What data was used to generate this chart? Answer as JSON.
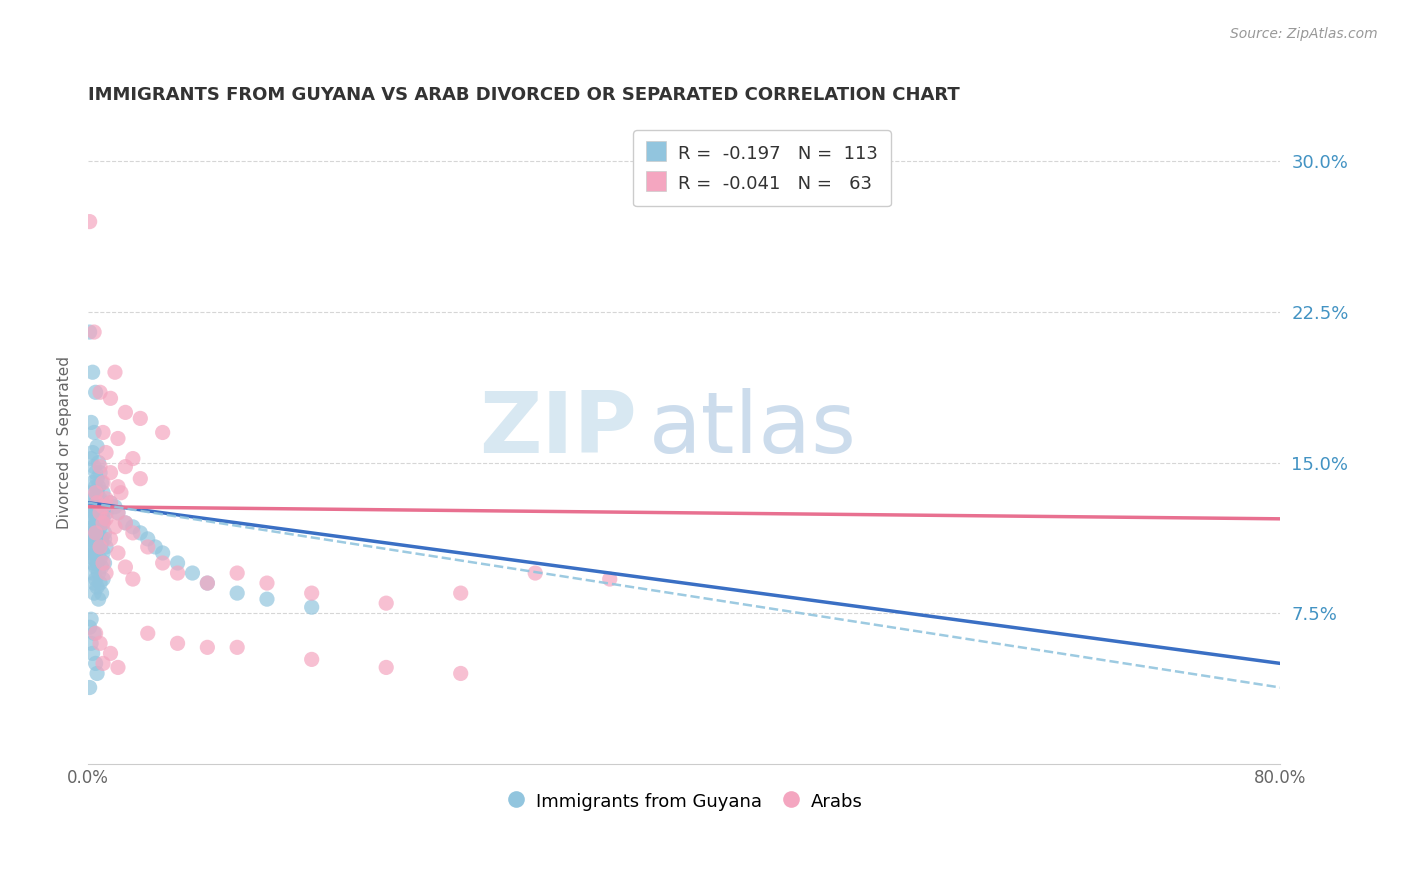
{
  "title": "IMMIGRANTS FROM GUYANA VS ARAB DIVORCED OR SEPARATED CORRELATION CHART",
  "source": "Source: ZipAtlas.com",
  "ylabel": "Divorced or Separated",
  "ytick_labels": [
    "7.5%",
    "15.0%",
    "22.5%",
    "30.0%"
  ],
  "ytick_values": [
    0.075,
    0.15,
    0.225,
    0.3
  ],
  "xlim": [
    0.0,
    0.8
  ],
  "ylim": [
    0.0,
    0.32
  ],
  "blue_color": "#92C5DE",
  "pink_color": "#F4A6C0",
  "blue_line_color": "#3A6FC4",
  "pink_line_color": "#E87090",
  "dashed_line_color": "#92C5DE",
  "blue_line": {
    "x0": 0.0,
    "y0": 0.13,
    "x1": 0.8,
    "y1": 0.05
  },
  "pink_line": {
    "x0": 0.0,
    "y0": 0.128,
    "x1": 0.8,
    "y1": 0.122
  },
  "dashed_line": {
    "x0": 0.0,
    "y0": 0.13,
    "x1": 0.8,
    "y1": 0.038
  },
  "blue_scatter": [
    [
      0.001,
      0.215
    ],
    [
      0.003,
      0.195
    ],
    [
      0.005,
      0.185
    ],
    [
      0.002,
      0.17
    ],
    [
      0.004,
      0.165
    ],
    [
      0.002,
      0.152
    ],
    [
      0.003,
      0.155
    ],
    [
      0.006,
      0.158
    ],
    [
      0.004,
      0.148
    ],
    [
      0.005,
      0.145
    ],
    [
      0.007,
      0.15
    ],
    [
      0.003,
      0.14
    ],
    [
      0.005,
      0.138
    ],
    [
      0.006,
      0.142
    ],
    [
      0.008,
      0.145
    ],
    [
      0.002,
      0.135
    ],
    [
      0.004,
      0.132
    ],
    [
      0.006,
      0.135
    ],
    [
      0.007,
      0.138
    ],
    [
      0.009,
      0.14
    ],
    [
      0.003,
      0.128
    ],
    [
      0.004,
      0.125
    ],
    [
      0.005,
      0.13
    ],
    [
      0.007,
      0.128
    ],
    [
      0.008,
      0.132
    ],
    [
      0.01,
      0.135
    ],
    [
      0.002,
      0.125
    ],
    [
      0.003,
      0.122
    ],
    [
      0.005,
      0.12
    ],
    [
      0.006,
      0.125
    ],
    [
      0.008,
      0.128
    ],
    [
      0.01,
      0.13
    ],
    [
      0.003,
      0.118
    ],
    [
      0.004,
      0.115
    ],
    [
      0.005,
      0.118
    ],
    [
      0.007,
      0.12
    ],
    [
      0.008,
      0.122
    ],
    [
      0.01,
      0.125
    ],
    [
      0.012,
      0.128
    ],
    [
      0.002,
      0.115
    ],
    [
      0.004,
      0.112
    ],
    [
      0.005,
      0.115
    ],
    [
      0.006,
      0.118
    ],
    [
      0.008,
      0.12
    ],
    [
      0.01,
      0.122
    ],
    [
      0.012,
      0.125
    ],
    [
      0.002,
      0.112
    ],
    [
      0.003,
      0.11
    ],
    [
      0.005,
      0.112
    ],
    [
      0.006,
      0.115
    ],
    [
      0.008,
      0.118
    ],
    [
      0.01,
      0.12
    ],
    [
      0.003,
      0.108
    ],
    [
      0.004,
      0.105
    ],
    [
      0.006,
      0.108
    ],
    [
      0.007,
      0.11
    ],
    [
      0.009,
      0.112
    ],
    [
      0.011,
      0.115
    ],
    [
      0.002,
      0.105
    ],
    [
      0.004,
      0.102
    ],
    [
      0.005,
      0.105
    ],
    [
      0.007,
      0.108
    ],
    [
      0.009,
      0.11
    ],
    [
      0.011,
      0.112
    ],
    [
      0.003,
      0.1
    ],
    [
      0.005,
      0.098
    ],
    [
      0.006,
      0.1
    ],
    [
      0.008,
      0.102
    ],
    [
      0.01,
      0.105
    ],
    [
      0.012,
      0.108
    ],
    [
      0.003,
      0.095
    ],
    [
      0.005,
      0.092
    ],
    [
      0.007,
      0.095
    ],
    [
      0.009,
      0.098
    ],
    [
      0.011,
      0.1
    ],
    [
      0.004,
      0.09
    ],
    [
      0.006,
      0.088
    ],
    [
      0.008,
      0.09
    ],
    [
      0.01,
      0.092
    ],
    [
      0.004,
      0.085
    ],
    [
      0.007,
      0.082
    ],
    [
      0.009,
      0.085
    ],
    [
      0.015,
      0.13
    ],
    [
      0.018,
      0.128
    ],
    [
      0.02,
      0.125
    ],
    [
      0.025,
      0.12
    ],
    [
      0.03,
      0.118
    ],
    [
      0.035,
      0.115
    ],
    [
      0.04,
      0.112
    ],
    [
      0.045,
      0.108
    ],
    [
      0.05,
      0.105
    ],
    [
      0.06,
      0.1
    ],
    [
      0.07,
      0.095
    ],
    [
      0.08,
      0.09
    ],
    [
      0.1,
      0.085
    ],
    [
      0.12,
      0.082
    ],
    [
      0.15,
      0.078
    ],
    [
      0.001,
      0.068
    ],
    [
      0.002,
      0.06
    ],
    [
      0.003,
      0.055
    ],
    [
      0.002,
      0.072
    ],
    [
      0.004,
      0.065
    ],
    [
      0.005,
      0.05
    ],
    [
      0.006,
      0.045
    ],
    [
      0.001,
      0.038
    ]
  ],
  "pink_scatter": [
    [
      0.001,
      0.27
    ],
    [
      0.004,
      0.215
    ],
    [
      0.018,
      0.195
    ],
    [
      0.008,
      0.185
    ],
    [
      0.015,
      0.182
    ],
    [
      0.025,
      0.175
    ],
    [
      0.035,
      0.172
    ],
    [
      0.01,
      0.165
    ],
    [
      0.02,
      0.162
    ],
    [
      0.012,
      0.155
    ],
    [
      0.03,
      0.152
    ],
    [
      0.008,
      0.148
    ],
    [
      0.015,
      0.145
    ],
    [
      0.025,
      0.148
    ],
    [
      0.01,
      0.14
    ],
    [
      0.02,
      0.138
    ],
    [
      0.035,
      0.142
    ],
    [
      0.005,
      0.135
    ],
    [
      0.012,
      0.132
    ],
    [
      0.022,
      0.135
    ],
    [
      0.006,
      0.13
    ],
    [
      0.01,
      0.128
    ],
    [
      0.015,
      0.13
    ],
    [
      0.008,
      0.125
    ],
    [
      0.012,
      0.122
    ],
    [
      0.02,
      0.125
    ],
    [
      0.01,
      0.12
    ],
    [
      0.018,
      0.118
    ],
    [
      0.025,
      0.12
    ],
    [
      0.05,
      0.165
    ],
    [
      0.005,
      0.115
    ],
    [
      0.015,
      0.112
    ],
    [
      0.03,
      0.115
    ],
    [
      0.008,
      0.108
    ],
    [
      0.02,
      0.105
    ],
    [
      0.04,
      0.108
    ],
    [
      0.01,
      0.1
    ],
    [
      0.025,
      0.098
    ],
    [
      0.05,
      0.1
    ],
    [
      0.012,
      0.095
    ],
    [
      0.03,
      0.092
    ],
    [
      0.06,
      0.095
    ],
    [
      0.08,
      0.09
    ],
    [
      0.1,
      0.095
    ],
    [
      0.12,
      0.09
    ],
    [
      0.15,
      0.085
    ],
    [
      0.2,
      0.08
    ],
    [
      0.3,
      0.095
    ],
    [
      0.35,
      0.092
    ],
    [
      0.25,
      0.085
    ],
    [
      0.005,
      0.065
    ],
    [
      0.008,
      0.06
    ],
    [
      0.015,
      0.055
    ],
    [
      0.02,
      0.048
    ],
    [
      0.01,
      0.05
    ],
    [
      0.04,
      0.065
    ],
    [
      0.06,
      0.06
    ],
    [
      0.08,
      0.058
    ],
    [
      0.1,
      0.058
    ],
    [
      0.15,
      0.052
    ],
    [
      0.2,
      0.048
    ],
    [
      0.25,
      0.045
    ]
  ]
}
